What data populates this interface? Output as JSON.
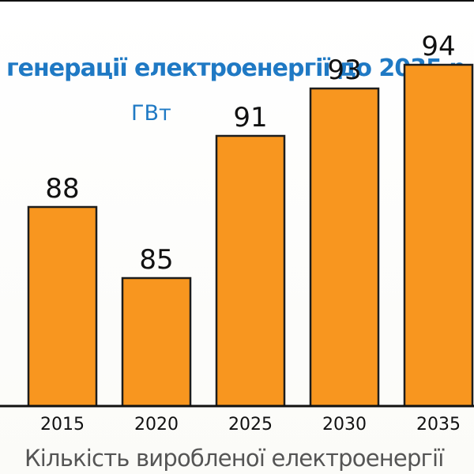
{
  "chart_data": {
    "type": "bar",
    "title": "генерації електроенергії до 2035 р.",
    "unit": "ГВт",
    "categories": [
      "2015",
      "2020",
      "2025",
      "2030",
      "2035"
    ],
    "values": [
      88,
      85,
      91,
      93,
      94
    ],
    "xlabel": "Кількість виробленої електроенергії",
    "ylabel": "",
    "legend": "none",
    "grid": false,
    "colors": {
      "bar": "#f8961f",
      "bar_outline": "#1d1d1d",
      "title": "#1f79c4",
      "text": "#111111",
      "xlabel": "#555555"
    }
  }
}
